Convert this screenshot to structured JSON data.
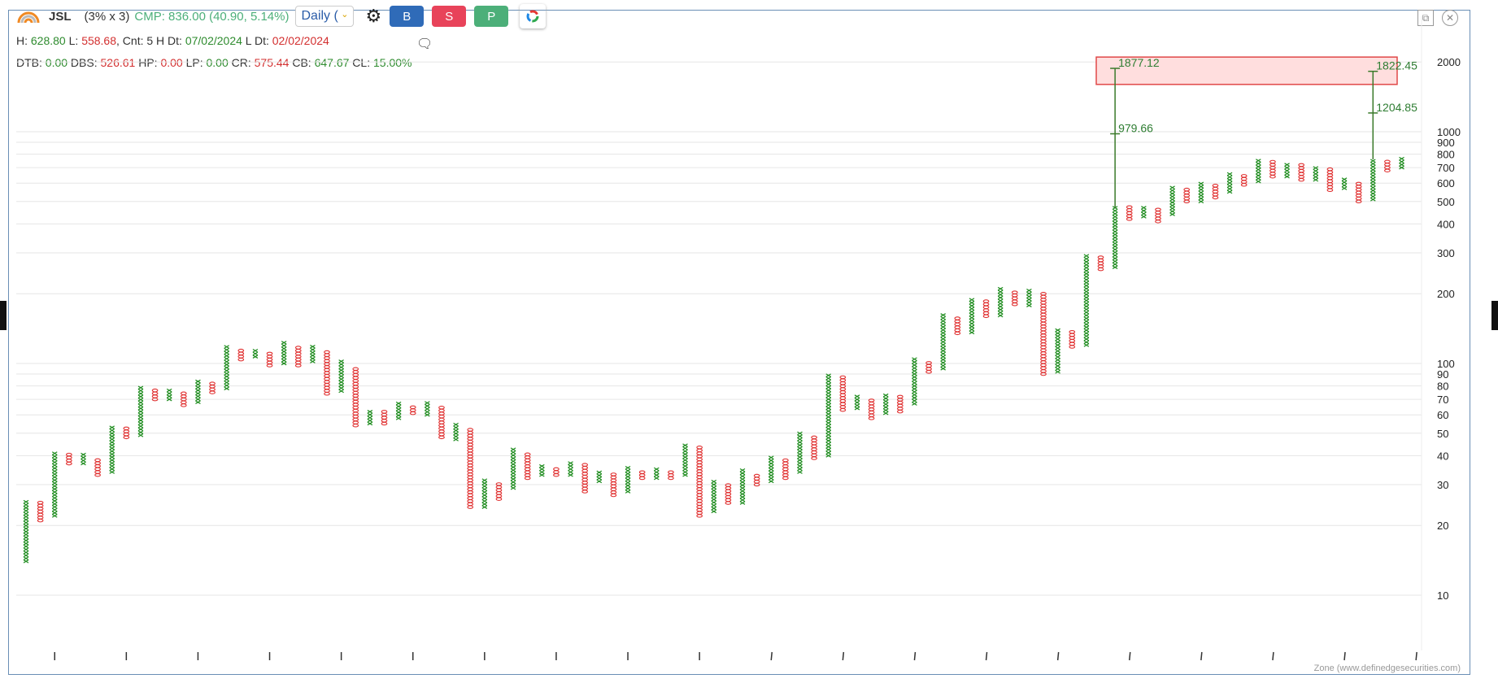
{
  "header": {
    "symbol": "JSL",
    "box": "(3% x 3)",
    "cmp": "CMP: 836.00 (40.90, 5.14%)",
    "timeframe": "Daily (",
    "buy": "B",
    "sell": "S",
    "p": "P"
  },
  "row1": {
    "h_label": "H: ",
    "h": "628.80",
    "l_label": " L: ",
    "l": "558.68",
    "cnt": ", Cnt: 5 H Dt: ",
    "hdt": "07/02/2024",
    "ldt_label": " L Dt: ",
    "ldt": "02/02/2024"
  },
  "row2": {
    "dtb_l": "DTB: ",
    "dtb": "0.00",
    "dbs_l": " DBS: ",
    "dbs": "526.61",
    "hp_l": " HP: ",
    "hp": "0.00",
    "lp_l": " LP: ",
    "lp": "0.00",
    "cr_l": " CR: ",
    "cr": "575.44",
    "cb_l": " CB: ",
    "cb": "647.67",
    "cl_l": " CL: ",
    "cl": "15.00%"
  },
  "footer": "Zone (www.definedgesecurities.com)",
  "colors": {
    "x": "#1e8c1e",
    "o": "#e03030",
    "zone": "#ffdede",
    "zone_border": "#e04848",
    "buy": "#2f6bb8",
    "sell": "#e8435a",
    "p": "#4caf79"
  },
  "chart_data": {
    "type": "point-and-figure",
    "box_pct": 3,
    "reversal": 3,
    "yscale": "log",
    "ylim": [
      10,
      2200
    ],
    "yticks": [
      10,
      20,
      30,
      40,
      50,
      60,
      70,
      80,
      90,
      100,
      200,
      300,
      400,
      500,
      600,
      700,
      800,
      900,
      1000,
      2000
    ],
    "columns": [
      [
        "X",
        14,
        25
      ],
      [
        "O",
        21,
        25
      ],
      [
        "X",
        22,
        41
      ],
      [
        "O",
        37,
        41
      ],
      [
        "X",
        37,
        40
      ],
      [
        "O",
        33,
        38
      ],
      [
        "X",
        34,
        53
      ],
      [
        "O",
        48,
        52
      ],
      [
        "X",
        49,
        78
      ],
      [
        "O",
        70,
        77
      ],
      [
        "X",
        70,
        77
      ],
      [
        "O",
        66,
        75
      ],
      [
        "X",
        68,
        83
      ],
      [
        "O",
        75,
        82
      ],
      [
        "X",
        78,
        118
      ],
      [
        "O",
        104,
        115
      ],
      [
        "X",
        107,
        114
      ],
      [
        "O",
        98,
        111
      ],
      [
        "X",
        100,
        123
      ],
      [
        "O",
        98,
        118
      ],
      [
        "X",
        102,
        117
      ],
      [
        "O",
        74,
        113
      ],
      [
        "X",
        76,
        102
      ],
      [
        "O",
        54,
        96
      ],
      [
        "X",
        55,
        62
      ],
      [
        "O",
        55,
        61
      ],
      [
        "X",
        58,
        67
      ],
      [
        "O",
        61,
        65
      ],
      [
        "X",
        60,
        68
      ],
      [
        "O",
        48,
        65
      ],
      [
        "X",
        47,
        54
      ],
      [
        "O",
        24,
        51
      ],
      [
        "X",
        24,
        31
      ],
      [
        "O",
        26,
        30
      ],
      [
        "X",
        29,
        42
      ],
      [
        "O",
        32,
        40
      ],
      [
        "X",
        33,
        36
      ],
      [
        "O",
        33,
        35
      ],
      [
        "X",
        33,
        37
      ],
      [
        "O",
        28,
        36
      ],
      [
        "X",
        31,
        34
      ],
      [
        "O",
        27,
        33
      ],
      [
        "X",
        28,
        35
      ],
      [
        "O",
        32,
        34
      ],
      [
        "X",
        32,
        35
      ],
      [
        "O",
        32,
        34
      ],
      [
        "X",
        33,
        44
      ],
      [
        "O",
        22,
        43
      ],
      [
        "X",
        23,
        31
      ],
      [
        "O",
        25,
        30
      ],
      [
        "X",
        25,
        35
      ],
      [
        "O",
        30,
        33
      ],
      [
        "X",
        31,
        39
      ],
      [
        "O",
        32,
        38
      ],
      [
        "X",
        34,
        50
      ],
      [
        "O",
        39,
        48
      ],
      [
        "X",
        40,
        88
      ],
      [
        "O",
        63,
        86
      ],
      [
        "X",
        64,
        73
      ],
      [
        "O",
        58,
        69
      ],
      [
        "X",
        61,
        73
      ],
      [
        "O",
        62,
        71
      ],
      [
        "X",
        67,
        105
      ],
      [
        "O",
        92,
        102
      ],
      [
        "X",
        95,
        160
      ],
      [
        "O",
        135,
        155
      ],
      [
        "X",
        136,
        190
      ],
      [
        "O",
        160,
        185
      ],
      [
        "X",
        161,
        210
      ],
      [
        "O",
        180,
        205
      ],
      [
        "X",
        178,
        208
      ],
      [
        "O",
        90,
        200
      ],
      [
        "X",
        92,
        140
      ],
      [
        "O",
        118,
        135
      ],
      [
        "X",
        120,
        290
      ],
      [
        "O",
        255,
        290
      ],
      [
        "X",
        260,
        470
      ],
      [
        "O",
        420,
        470
      ],
      [
        "X",
        430,
        470
      ],
      [
        "O",
        410,
        460
      ],
      [
        "X",
        440,
        580
      ],
      [
        "O",
        500,
        570
      ],
      [
        "X",
        500,
        590
      ],
      [
        "O",
        520,
        580
      ],
      [
        "X",
        550,
        650
      ],
      [
        "O",
        590,
        640
      ],
      [
        "X",
        610,
        760
      ],
      [
        "O",
        640,
        750
      ],
      [
        "X",
        640,
        730
      ],
      [
        "O",
        620,
        710
      ],
      [
        "X",
        620,
        700
      ],
      [
        "O",
        560,
        680
      ],
      [
        "X",
        570,
        620
      ],
      [
        "O",
        500,
        600
      ],
      [
        "X",
        510,
        760
      ],
      [
        "O",
        680,
        740
      ],
      [
        "X",
        700,
        770
      ]
    ],
    "target_zone": {
      "low": 1600,
      "high": 2100
    },
    "projections": [
      {
        "column": 76,
        "from": 470,
        "mid": 979.66,
        "target": 1877.12,
        "mid_label": "979.66",
        "target_label": "1877.12"
      },
      {
        "column": 94,
        "from": 760,
        "mid": 1204.85,
        "target": 1822.45,
        "mid_label": "1204.85",
        "target_label": "1822.45"
      }
    ]
  }
}
